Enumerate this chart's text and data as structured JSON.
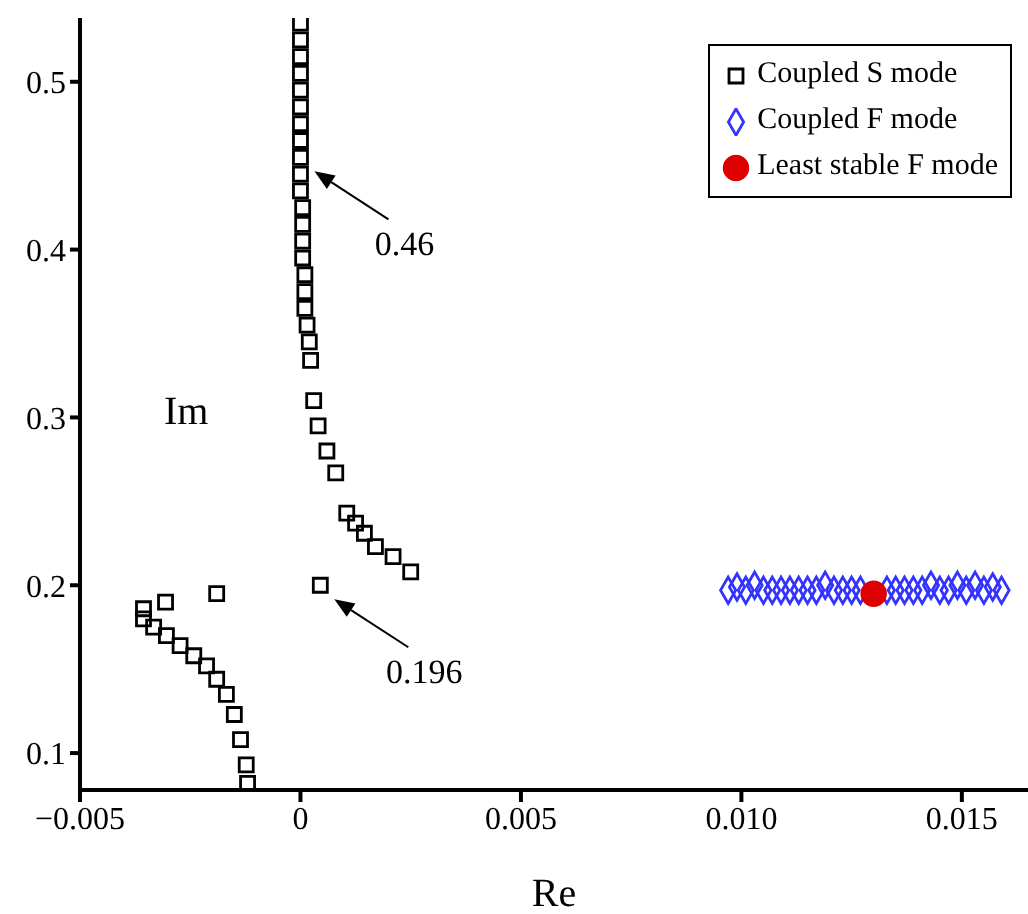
{
  "chart_data": {
    "type": "scatter",
    "xlabel": "Re",
    "ylabel": "Im",
    "xlim": [
      -0.005,
      0.0165
    ],
    "ylim": [
      0.078,
      0.538
    ],
    "xticks": [
      {
        "value": -0.005,
        "label": "−0.005"
      },
      0,
      {
        "value": 0.005,
        "label": "0.005"
      },
      {
        "value": 0.01,
        "label": "0.010"
      },
      {
        "value": 0.015,
        "label": "0.015"
      }
    ],
    "yticks": [
      0.1,
      0.2,
      0.3,
      0.4,
      0.5
    ],
    "legend": "top right",
    "grid": false,
    "annotations": [
      {
        "text": "0.46",
        "x": 0,
        "y": 0.455
      },
      {
        "text": "0.196",
        "x": 0.00045,
        "y": 0.2
      }
    ],
    "series": [
      {
        "name": "Coupled S mode",
        "color": "#000000",
        "marker": "square",
        "x": [
          0,
          0,
          0,
          0,
          0,
          0,
          0,
          0,
          0,
          0,
          0,
          5e-05,
          5e-05,
          5e-05,
          5e-05,
          0.0001,
          0.0001,
          0.0001,
          0.00015,
          0.0002,
          0.00023,
          0.0003,
          0.0004,
          0.0006,
          0.0008,
          0.00105,
          0.00125,
          0.00145,
          0.0017,
          0.0021,
          0.0025,
          0.00045,
          -0.0019,
          -0.00306,
          -0.00356,
          -0.00356,
          -0.00333,
          -0.00304,
          -0.00273,
          -0.00242,
          -0.00213,
          -0.0019,
          -0.00168,
          -0.0015,
          -0.00136,
          -0.00123,
          -0.0012
        ],
        "values": [
          0.535,
          0.525,
          0.515,
          0.505,
          0.495,
          0.485,
          0.475,
          0.465,
          0.455,
          0.445,
          0.435,
          0.425,
          0.415,
          0.405,
          0.395,
          0.385,
          0.375,
          0.365,
          0.355,
          0.345,
          0.334,
          0.31,
          0.295,
          0.28,
          0.267,
          0.243,
          0.237,
          0.231,
          0.223,
          0.217,
          0.208,
          0.2,
          0.195,
          0.19,
          0.186,
          0.18,
          0.175,
          0.17,
          0.164,
          0.158,
          0.152,
          0.144,
          0.135,
          0.123,
          0.108,
          0.093,
          0.082
        ]
      },
      {
        "name": "Coupled F mode",
        "color": "#3333ff",
        "marker": "diamond",
        "x": [
          0.0097,
          0.0099,
          0.0101,
          0.0103,
          0.0105,
          0.0107,
          0.0109,
          0.0111,
          0.0113,
          0.0115,
          0.0117,
          0.0119,
          0.0121,
          0.0123,
          0.0125,
          0.0127,
          0.0133,
          0.0135,
          0.0137,
          0.0139,
          0.0141,
          0.0143,
          0.0145,
          0.0147,
          0.0149,
          0.0151,
          0.0153,
          0.0155,
          0.0157,
          0.0159
        ],
        "values": [
          0.197,
          0.199,
          0.197,
          0.2,
          0.197,
          0.197,
          0.197,
          0.197,
          0.197,
          0.197,
          0.197,
          0.2,
          0.197,
          0.197,
          0.197,
          0.197,
          0.197,
          0.197,
          0.197,
          0.197,
          0.197,
          0.2,
          0.197,
          0.197,
          0.2,
          0.197,
          0.2,
          0.197,
          0.199,
          0.197
        ]
      },
      {
        "name": "Least stable F mode",
        "color": "#dd0000",
        "marker": "circle",
        "x": [
          0.013
        ],
        "values": [
          0.195
        ]
      }
    ]
  }
}
